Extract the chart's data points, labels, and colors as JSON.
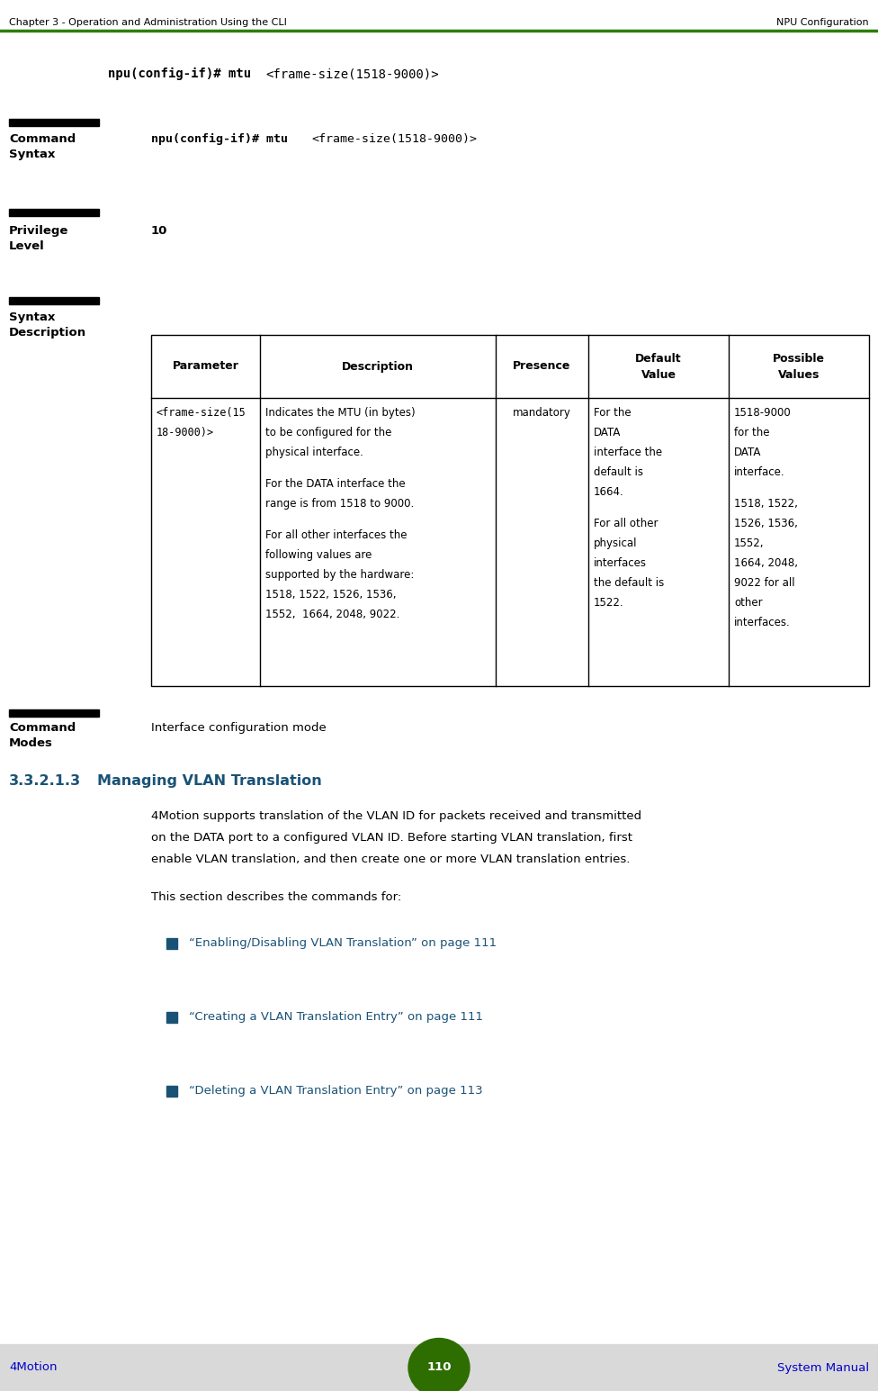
{
  "header_left": "Chapter 3 - Operation and Administration Using the CLI",
  "header_right": "NPU Configuration",
  "header_line_color": "#2e7d00",
  "footer_left": "4Motion",
  "footer_right": "System Manual",
  "footer_page": "110",
  "footer_bg": "#d9d9d9",
  "footer_circle_color": "#2e6e00",
  "footer_text_color": "#0000cc",
  "code_line_bold": "npu(config-if)# mtu ",
  "code_line_mono": "<frame-size(1518-9000)>",
  "command_syntax_label": "Command\nSyntax",
  "command_syntax_bold": "npu(config-if)# mtu ",
  "command_syntax_mono": "<frame-size(1518-9000)>",
  "privilege_label": "Privilege\nLevel",
  "privilege_value": "10",
  "syntax_desc_label": "Syntax\nDescription",
  "table_headers": [
    "Parameter",
    "Description",
    "Presence",
    "Default\nValue",
    "Possible\nValues"
  ],
  "table_param_lines": [
    "<frame-size(15",
    "18-9000)>"
  ],
  "table_desc_lines": [
    "Indicates the MTU (in bytes)",
    "to be configured for the",
    "physical interface.",
    "",
    "For the DATA interface the",
    "range is from 1518 to 9000.",
    "",
    "For all other interfaces the",
    "following values are",
    "supported by the hardware:",
    "1518, 1522, 1526, 1536,",
    "1552,  1664, 2048, 9022."
  ],
  "table_presence": "mandatory",
  "table_default_lines": [
    "For the",
    "DATA",
    "interface the",
    "default is",
    "1664.",
    "",
    "For all other",
    "physical",
    "interfaces",
    "the default is",
    "1522."
  ],
  "table_possible_lines": [
    "1518-9000",
    "for the",
    "DATA",
    "interface.",
    "",
    "1518, 1522,",
    "1526, 1536,",
    "1552,",
    "1664, 2048,",
    "9022 for all",
    "other",
    "interfaces."
  ],
  "command_modes_label": "Command\nModes",
  "command_modes_value": "Interface configuration mode",
  "section_num": "3.3.2.1.3",
  "section_title": "Managing VLAN Translation",
  "section_color": "#1a5276",
  "body_text1_lines": [
    "4Motion supports translation of the VLAN ID for packets received and transmitted",
    "on the DATA port to a configured VLAN ID. Before starting VLAN translation, first",
    "enable VLAN translation, and then create one or more VLAN translation entries."
  ],
  "body_text2": "This section describes the commands for:",
  "bullet1": "“Enabling/Disabling VLAN Translation” on page 111",
  "bullet2": "“Creating a VLAN Translation Entry” on page 111",
  "bullet3": "“Deleting a VLAN Translation Entry” on page 113",
  "bullet_color": "#1a5276",
  "bullet_sq_color": "#1a5276",
  "bg_color": "#ffffff",
  "black": "#000000"
}
